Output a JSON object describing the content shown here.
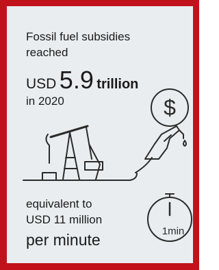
{
  "headline": {
    "line1": "Fossil fuel subsidies",
    "line2": "reached",
    "currency": "USD",
    "amount": "5.9",
    "unit": "trillion",
    "line4": "in 2020"
  },
  "equivalent": {
    "line1": "equivalent to",
    "line2": "USD 11 million",
    "line3": "per minute"
  },
  "icons": {
    "dollar": "$",
    "stopwatch": "1min"
  }
}
